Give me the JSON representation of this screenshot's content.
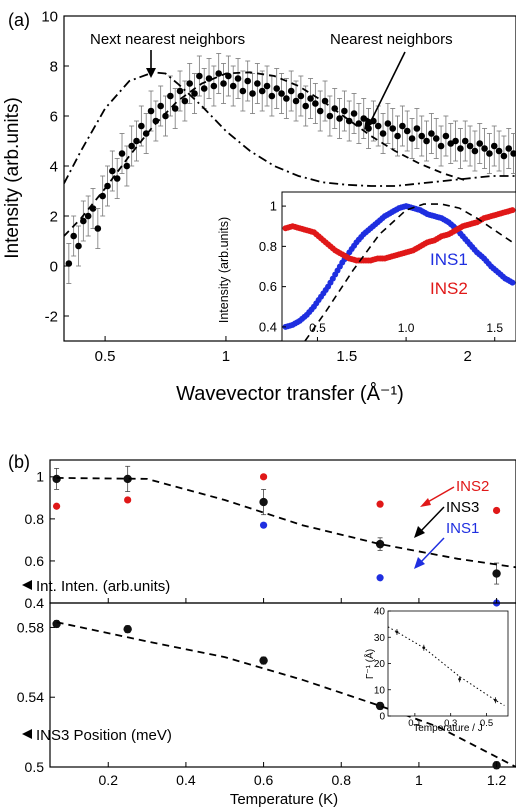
{
  "panel_labels": {
    "a": "(a)",
    "b": "(b)"
  },
  "colors": {
    "ins1": "#1f2fe0",
    "ins2": "#e01818",
    "ins3": "#111111",
    "black": "#000000"
  },
  "chart_data": [
    {
      "id": "a-main",
      "type": "scatter",
      "xlabel": "Wavevector transfer (Å⁻¹)",
      "ylabel": "Intensity (arb.units)",
      "xlim": [
        0.33,
        2.2
      ],
      "ylim": [
        -3,
        10
      ],
      "xticks": [
        0.5,
        1,
        1.5,
        2
      ],
      "yticks": [
        -2,
        0,
        2,
        4,
        6,
        8,
        10
      ],
      "annotations": {
        "next_nearest": "Next nearest neighbors",
        "nearest": "Nearest neighbors"
      },
      "series": [
        {
          "kind": "points",
          "x": [
            0.35,
            0.37,
            0.39,
            0.41,
            0.43,
            0.45,
            0.47,
            0.49,
            0.51,
            0.53,
            0.55,
            0.57,
            0.59,
            0.61,
            0.63,
            0.65,
            0.67,
            0.69,
            0.71,
            0.73,
            0.75,
            0.77,
            0.79,
            0.81,
            0.83,
            0.85,
            0.87,
            0.89,
            0.91,
            0.93,
            0.95,
            0.97,
            0.99,
            1.01,
            1.03,
            1.05,
            1.07,
            1.09,
            1.11,
            1.13,
            1.15,
            1.17,
            1.19,
            1.21,
            1.23,
            1.25,
            1.27,
            1.29,
            1.31,
            1.33,
            1.35,
            1.37,
            1.39,
            1.41,
            1.43,
            1.45,
            1.47,
            1.49,
            1.51,
            1.53,
            1.55,
            1.57,
            1.59,
            1.61,
            1.63,
            1.65,
            1.67,
            1.69,
            1.71,
            1.73,
            1.75,
            1.77,
            1.79,
            1.81,
            1.83,
            1.85,
            1.87,
            1.89,
            1.91,
            1.93,
            1.95,
            1.97,
            1.99,
            2.01,
            2.03,
            2.05,
            2.07,
            2.09,
            2.11,
            2.13,
            2.15,
            2.17,
            2.19
          ],
          "y": [
            0.1,
            1.2,
            0.8,
            1.8,
            2.0,
            2.3,
            1.5,
            2.8,
            3.2,
            3.8,
            3.5,
            4.5,
            4.0,
            4.8,
            5.0,
            5.6,
            5.3,
            6.2,
            5.8,
            6.4,
            6.0,
            6.8,
            6.3,
            7.0,
            6.6,
            7.3,
            6.9,
            7.6,
            7.1,
            7.5,
            7.2,
            7.7,
            7.3,
            7.6,
            7.2,
            7.5,
            7.0,
            7.4,
            6.9,
            7.3,
            7.0,
            7.2,
            6.8,
            7.1,
            6.9,
            6.7,
            7.0,
            6.6,
            6.8,
            6.4,
            6.7,
            6.5,
            6.2,
            6.6,
            6.0,
            6.3,
            5.9,
            6.2,
            5.8,
            6.1,
            5.7,
            5.9,
            5.5,
            5.8,
            5.6,
            5.3,
            5.7,
            5.5,
            5.2,
            5.6,
            5.4,
            5.1,
            5.5,
            5.2,
            5.0,
            5.3,
            5.1,
            4.8,
            5.2,
            4.9,
            5.0,
            4.7,
            5.0,
            4.8,
            4.6,
            4.9,
            4.7,
            4.5,
            4.8,
            4.6,
            4.4,
            4.7,
            4.5
          ],
          "error": 0.8,
          "color": "#000000"
        },
        {
          "kind": "line",
          "style": "dashdot",
          "name": "Next nearest neighbors",
          "x": [
            0.33,
            0.4,
            0.5,
            0.6,
            0.7,
            0.75,
            0.8,
            0.9,
            1.0,
            1.1,
            1.2,
            1.3,
            1.4,
            1.5,
            1.6,
            1.7,
            1.8,
            1.9,
            2.0,
            2.1,
            2.2
          ],
          "y": [
            3.3,
            4.6,
            6.3,
            7.4,
            7.75,
            7.7,
            7.3,
            6.4,
            5.4,
            4.6,
            4.0,
            3.6,
            3.35,
            3.25,
            3.2,
            3.2,
            3.3,
            3.4,
            3.5,
            3.6,
            3.6
          ]
        },
        {
          "kind": "line",
          "style": "dashed",
          "name": "Nearest neighbors",
          "x": [
            0.33,
            0.4,
            0.5,
            0.6,
            0.7,
            0.8,
            0.9,
            1.0,
            1.1,
            1.2,
            1.3,
            1.4,
            1.5,
            1.6,
            1.7,
            1.8,
            1.9,
            2.0
          ],
          "y": [
            1.2,
            1.9,
            3.1,
            4.4,
            5.6,
            6.6,
            7.3,
            7.7,
            7.75,
            7.6,
            7.2,
            6.6,
            5.9,
            5.2,
            4.6,
            4.1,
            3.7,
            3.4
          ]
        }
      ]
    },
    {
      "id": "a-inset",
      "type": "scatter",
      "ylabel": "Intensity (arb.units)",
      "xlim": [
        0.3,
        1.62
      ],
      "ylim": [
        0.33,
        1.07
      ],
      "xticks": [
        0.5,
        1.0,
        1.5
      ],
      "xticklabels": [
        "0.5",
        "1.0",
        "1.5"
      ],
      "yticks": [
        0.4,
        0.6,
        0.8,
        1
      ],
      "series": [
        {
          "name": "INS1",
          "color": "#1f2fe0",
          "x": [
            0.32,
            0.36,
            0.4,
            0.44,
            0.48,
            0.52,
            0.56,
            0.6,
            0.64,
            0.68,
            0.72,
            0.76,
            0.8,
            0.84,
            0.88,
            0.92,
            0.96,
            1.0,
            1.04,
            1.08,
            1.12,
            1.16,
            1.2,
            1.24,
            1.28,
            1.32,
            1.36,
            1.4,
            1.44,
            1.48,
            1.52,
            1.56,
            1.6
          ],
          "y": [
            0.4,
            0.41,
            0.43,
            0.46,
            0.5,
            0.55,
            0.6,
            0.66,
            0.72,
            0.77,
            0.82,
            0.86,
            0.89,
            0.92,
            0.95,
            0.97,
            0.99,
            1.0,
            0.99,
            0.98,
            0.96,
            0.95,
            0.94,
            0.92,
            0.89,
            0.85,
            0.81,
            0.77,
            0.74,
            0.7,
            0.67,
            0.64,
            0.62
          ]
        },
        {
          "name": "INS2",
          "color": "#e01818",
          "x": [
            0.32,
            0.36,
            0.4,
            0.44,
            0.48,
            0.52,
            0.56,
            0.6,
            0.64,
            0.68,
            0.72,
            0.76,
            0.8,
            0.84,
            0.88,
            0.92,
            0.96,
            1.0,
            1.04,
            1.08,
            1.12,
            1.16,
            1.2,
            1.24,
            1.28,
            1.32,
            1.36,
            1.4,
            1.44,
            1.48,
            1.52,
            1.56,
            1.6
          ],
          "y": [
            0.89,
            0.9,
            0.89,
            0.88,
            0.87,
            0.84,
            0.81,
            0.78,
            0.76,
            0.74,
            0.73,
            0.73,
            0.73,
            0.74,
            0.74,
            0.75,
            0.76,
            0.77,
            0.78,
            0.8,
            0.82,
            0.83,
            0.85,
            0.86,
            0.88,
            0.9,
            0.91,
            0.92,
            0.94,
            0.95,
            0.96,
            0.97,
            0.98
          ]
        },
        {
          "kind": "line",
          "style": "dashed",
          "x": [
            0.43,
            0.55,
            0.7,
            0.85,
            1.0,
            1.1,
            1.2,
            1.3,
            1.4,
            1.5,
            1.6
          ],
          "y": [
            0.33,
            0.48,
            0.68,
            0.86,
            0.98,
            1.01,
            1.01,
            0.99,
            0.94,
            0.88,
            0.82
          ]
        }
      ]
    },
    {
      "id": "b-top",
      "type": "scatter",
      "xlim": [
        0.05,
        1.25
      ],
      "ylim": [
        0.4,
        1.08
      ],
      "yticks": [
        0.4,
        0.6,
        0.8,
        1
      ],
      "annotation": "Int. Inten. (arb.units)",
      "series": [
        {
          "name": "INS1",
          "color": "#1f2fe0",
          "x": [
            0.067,
            0.25,
            0.6,
            0.9,
            1.2
          ],
          "y": [
            0.99,
            0.99,
            0.77,
            0.52,
            0.4
          ]
        },
        {
          "name": "INS2",
          "color": "#e01818",
          "x": [
            0.067,
            0.25,
            0.6,
            0.9,
            1.2
          ],
          "y": [
            0.86,
            0.89,
            1.0,
            0.87,
            0.84
          ]
        },
        {
          "name": "INS3",
          "color": "#111111",
          "x": [
            0.067,
            0.25,
            0.6,
            0.9,
            1.2
          ],
          "y": [
            0.99,
            0.99,
            0.88,
            0.68,
            0.54
          ],
          "error": [
            0.05,
            0.06,
            0.06,
            0.03,
            0.05
          ]
        },
        {
          "kind": "line",
          "style": "dashed",
          "x": [
            0.067,
            0.3,
            0.5,
            0.7,
            0.9,
            1.1,
            1.25
          ],
          "y": [
            0.995,
            0.99,
            0.89,
            0.77,
            0.68,
            0.61,
            0.57
          ]
        }
      ]
    },
    {
      "id": "b-bottom",
      "type": "scatter",
      "xlabel": "Temperature (K)",
      "xlim": [
        0.05,
        1.25
      ],
      "ylim": [
        0.5,
        0.594
      ],
      "xticks": [
        0.2,
        0.4,
        0.6,
        0.8,
        1,
        1.2
      ],
      "yticks": [
        0.5,
        0.54,
        0.58
      ],
      "annotation": "INS3 Position (meV)",
      "series": [
        {
          "name": "INS3",
          "color": "#111111",
          "x": [
            0.067,
            0.25,
            0.6,
            0.9,
            1.2
          ],
          "y": [
            0.582,
            0.579,
            0.561,
            0.535,
            0.501
          ],
          "error": 0.002
        },
        {
          "kind": "line",
          "style": "dashed",
          "x": [
            0.067,
            0.3,
            0.5,
            0.7,
            0.9,
            1.05,
            1.25
          ],
          "y": [
            0.583,
            0.572,
            0.563,
            0.55,
            0.535,
            0.523,
            0.5
          ]
        }
      ]
    },
    {
      "id": "b-inset",
      "type": "scatter",
      "xlabel": "Temperature / J",
      "ylabel": "Γ⁻¹ (Å)",
      "xlim": [
        -0.05,
        0.62
      ],
      "ylim": [
        0,
        40
      ],
      "xticks": [
        0.1,
        0.3,
        0.5
      ],
      "yticks": [
        0,
        10,
        20,
        30,
        40
      ],
      "series": [
        {
          "x": [
            0.0,
            0.15,
            0.35,
            0.55
          ],
          "y": [
            32,
            26,
            14,
            6
          ],
          "color": "#111111"
        },
        {
          "kind": "line",
          "style": "dotted",
          "x": [
            -0.05,
            0.0,
            0.15,
            0.35,
            0.55,
            0.6
          ],
          "y": [
            34,
            32,
            26,
            15,
            6,
            4
          ]
        }
      ]
    }
  ],
  "labels": {
    "ins1": "INS1",
    "ins2": "INS2",
    "ins3": "INS3"
  }
}
